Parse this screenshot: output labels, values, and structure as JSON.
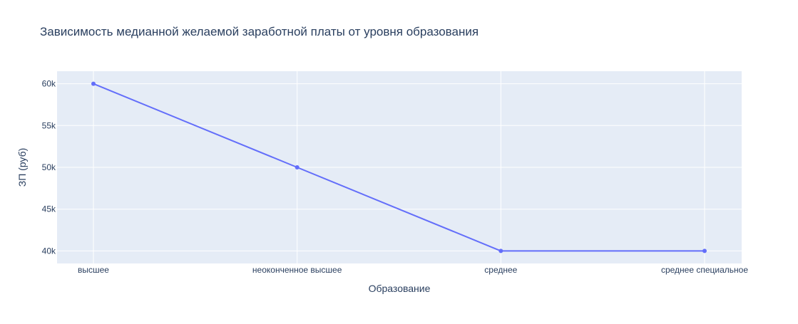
{
  "chart_data": {
    "type": "line",
    "title": "Зависимость медианной желаемой заработной платы от уровня образования",
    "xlabel": "Образование",
    "ylabel": "ЗП (руб)",
    "categories": [
      "высшее",
      "неоконченное высшее",
      "среднее",
      "среднее специальное"
    ],
    "series": [
      {
        "values": [
          60000,
          50000,
          40000,
          40000
        ]
      }
    ],
    "ylim": [
      38500,
      61500
    ],
    "yticks": [
      40000,
      45000,
      50000,
      55000,
      60000
    ],
    "ytick_labels": [
      "40k",
      "45k",
      "50k",
      "55k",
      "60k"
    ],
    "grid": true,
    "legend": "none",
    "colors": {
      "plot_bg": "#e5ecf6",
      "grid": "#ffffff",
      "line": "#636efa",
      "text": "#2a3f5f"
    }
  }
}
